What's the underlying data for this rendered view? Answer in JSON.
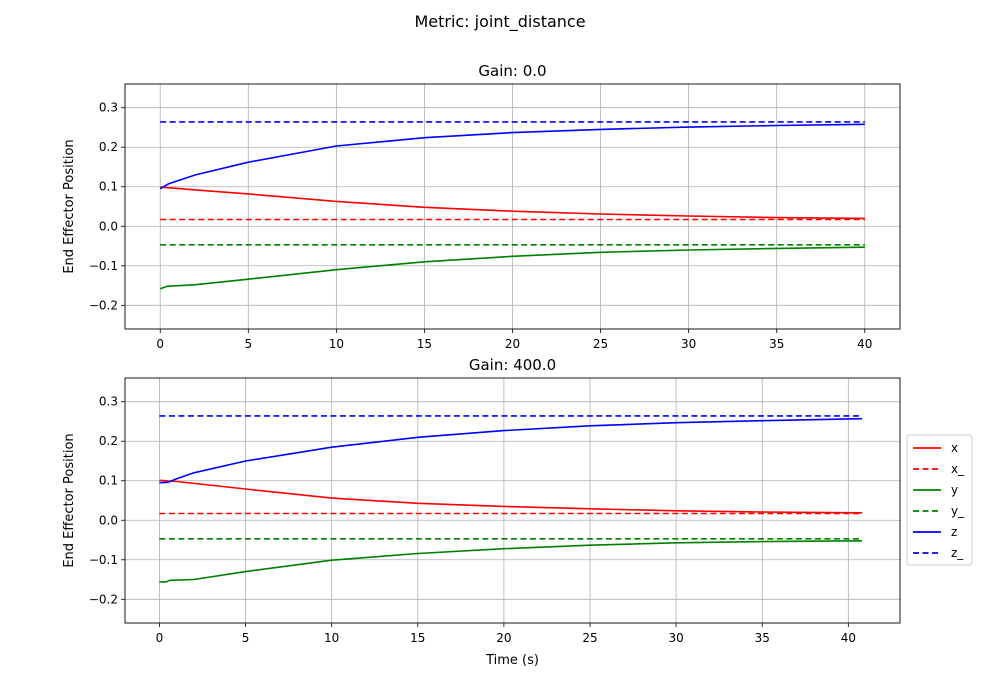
{
  "figure": {
    "suptitle": "Metric: joint_distance"
  },
  "colors": {
    "x": "#ff0000",
    "y": "#008000",
    "z": "#0000ff",
    "grid": "#b0b0b0"
  },
  "legend": {
    "placement": "right",
    "entries": [
      {
        "label": "x",
        "color": "#ff0000",
        "style": "solid"
      },
      {
        "label": "x_",
        "color": "#ff0000",
        "style": "dashed"
      },
      {
        "label": "y",
        "color": "#008000",
        "style": "solid"
      },
      {
        "label": "y_",
        "color": "#008000",
        "style": "dashed"
      },
      {
        "label": "z",
        "color": "#0000ff",
        "style": "solid"
      },
      {
        "label": "z_",
        "color": "#0000ff",
        "style": "dashed"
      }
    ]
  },
  "chart_data": [
    {
      "type": "line",
      "title": "Gain: 0.0",
      "xlabel": "",
      "ylabel": "End Effector Position",
      "xlim": [
        -2,
        42
      ],
      "ylim": [
        -0.26,
        0.36
      ],
      "xticks": [
        0,
        5,
        10,
        15,
        20,
        25,
        30,
        35,
        40
      ],
      "yticks": [
        -0.2,
        -0.1,
        0.0,
        0.1,
        0.2,
        0.3
      ],
      "xticklabels": [
        "0",
        "5",
        "10",
        "15",
        "20",
        "25",
        "30",
        "35",
        "40"
      ],
      "yticklabels": [
        "−0.2",
        "−0.1",
        "0.0",
        "0.1",
        "0.2",
        "0.3"
      ],
      "grid": true,
      "series": [
        {
          "name": "x",
          "color": "#ff0000",
          "style": "solid",
          "x": [
            0,
            2,
            5,
            10,
            15,
            20,
            25,
            30,
            35,
            40
          ],
          "y": [
            0.099,
            0.092,
            0.082,
            0.063,
            0.048,
            0.038,
            0.031,
            0.026,
            0.022,
            0.02
          ]
        },
        {
          "name": "x_",
          "color": "#ff0000",
          "style": "dashed",
          "x": [
            0,
            40
          ],
          "y": [
            0.017,
            0.017
          ]
        },
        {
          "name": "y",
          "color": "#008000",
          "style": "solid",
          "x": [
            0,
            0.4,
            2,
            5,
            10,
            15,
            20,
            25,
            30,
            35,
            40
          ],
          "y": [
            -0.158,
            -0.152,
            -0.148,
            -0.134,
            -0.11,
            -0.09,
            -0.076,
            -0.066,
            -0.06,
            -0.056,
            -0.053
          ]
        },
        {
          "name": "y_",
          "color": "#008000",
          "style": "dashed",
          "x": [
            0,
            40
          ],
          "y": [
            -0.047,
            -0.047
          ]
        },
        {
          "name": "z",
          "color": "#0000ff",
          "style": "solid",
          "x": [
            0,
            0.5,
            2,
            5,
            10,
            15,
            20,
            25,
            30,
            35,
            40
          ],
          "y": [
            0.095,
            0.108,
            0.13,
            0.162,
            0.203,
            0.224,
            0.237,
            0.245,
            0.251,
            0.255,
            0.258
          ]
        },
        {
          "name": "z_",
          "color": "#0000ff",
          "style": "dashed",
          "x": [
            0,
            40
          ],
          "y": [
            0.264,
            0.264
          ]
        }
      ]
    },
    {
      "type": "line",
      "title": "Gain: 400.0",
      "xlabel": "Time (s)",
      "ylabel": "End Effector Position",
      "xlim": [
        -2,
        43
      ],
      "ylim": [
        -0.26,
        0.36
      ],
      "xticks": [
        0,
        5,
        10,
        15,
        20,
        25,
        30,
        35,
        40
      ],
      "yticks": [
        -0.2,
        -0.1,
        0.0,
        0.1,
        0.2,
        0.3
      ],
      "xticklabels": [
        "0",
        "5",
        "10",
        "15",
        "20",
        "25",
        "30",
        "35",
        "40"
      ],
      "yticklabels": [
        "−0.2",
        "−0.1",
        "0.0",
        "0.1",
        "0.2",
        "0.3"
      ],
      "grid": true,
      "series": [
        {
          "name": "x",
          "color": "#ff0000",
          "style": "solid",
          "x": [
            0,
            1,
            5,
            10,
            15,
            20,
            25,
            30,
            35,
            40.8
          ],
          "y": [
            0.101,
            0.098,
            0.079,
            0.056,
            0.043,
            0.035,
            0.029,
            0.024,
            0.021,
            0.019
          ]
        },
        {
          "name": "x_",
          "color": "#ff0000",
          "style": "dashed",
          "x": [
            0,
            40.8
          ],
          "y": [
            0.017,
            0.017
          ]
        },
        {
          "name": "y",
          "color": "#008000",
          "style": "solid",
          "x": [
            0,
            0.4,
            0.6,
            2,
            5,
            10,
            15,
            20,
            25,
            30,
            35,
            40.8
          ],
          "y": [
            -0.156,
            -0.156,
            -0.152,
            -0.15,
            -0.13,
            -0.101,
            -0.084,
            -0.072,
            -0.063,
            -0.057,
            -0.054,
            -0.052
          ]
        },
        {
          "name": "y_",
          "color": "#008000",
          "style": "dashed",
          "x": [
            0,
            40.8
          ],
          "y": [
            -0.047,
            -0.047
          ]
        },
        {
          "name": "z",
          "color": "#0000ff",
          "style": "solid",
          "x": [
            0,
            0.5,
            1,
            2,
            5,
            10,
            15,
            20,
            25,
            30,
            35,
            40.8
          ],
          "y": [
            0.095,
            0.096,
            0.105,
            0.12,
            0.15,
            0.185,
            0.21,
            0.227,
            0.239,
            0.247,
            0.252,
            0.257
          ]
        },
        {
          "name": "z_",
          "color": "#0000ff",
          "style": "dashed",
          "x": [
            0,
            40.8
          ],
          "y": [
            0.264,
            0.264
          ]
        }
      ]
    }
  ]
}
